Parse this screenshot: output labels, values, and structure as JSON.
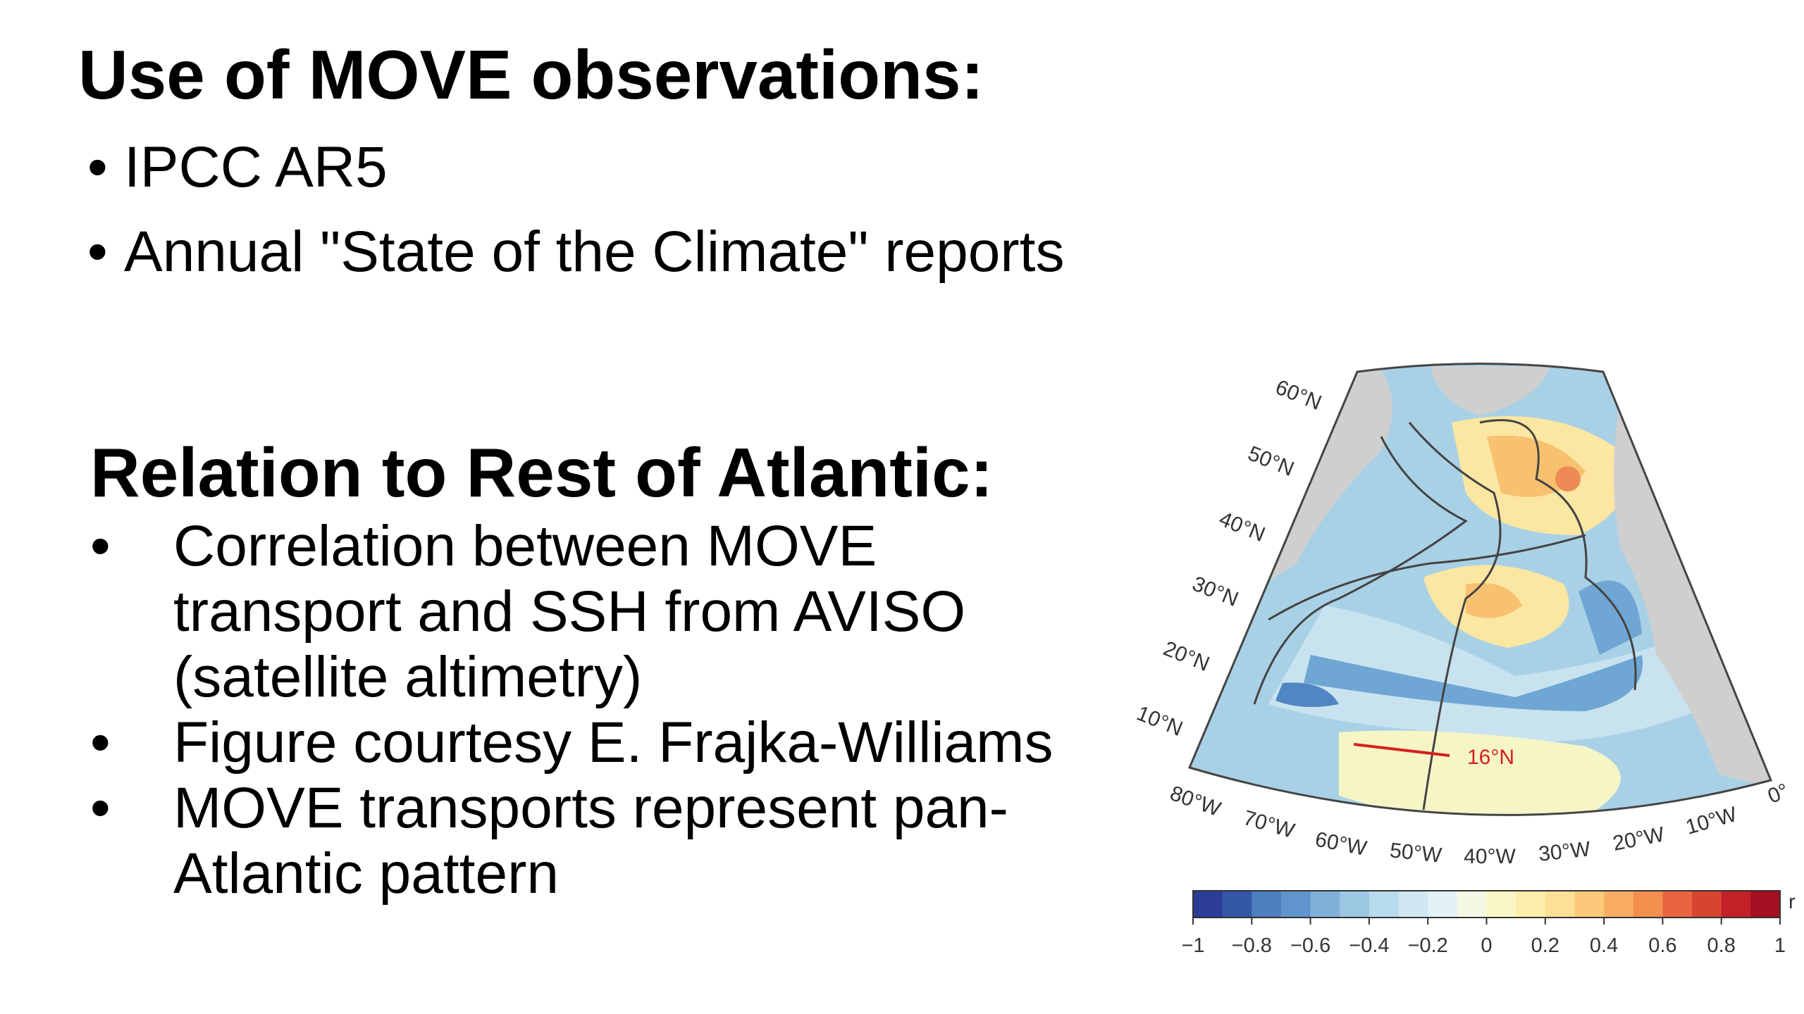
{
  "sections": [
    {
      "heading": "Use of MOVE observations:",
      "bullets": [
        "IPCC AR5",
        "Annual \"State of the Climate\" reports"
      ]
    },
    {
      "heading": "Relation to Rest of Atlantic:",
      "bullets": [
        [
          "Correlation between MOVE",
          "transport and SSH from AVISO",
          "(satellite altimetry)"
        ],
        [
          "Figure courtesy E. Frajka-Williams"
        ],
        [
          "MOVE transports represent pan-",
          "Atlantic pattern"
        ]
      ]
    }
  ],
  "figure": {
    "lat_labels": [
      "60°N",
      "50°N",
      "40°N",
      "30°N",
      "20°N",
      "10°N"
    ],
    "lon_labels": [
      "80°W",
      "70°W",
      "60°W",
      "50°W",
      "40°W",
      "30°W",
      "20°W",
      "10°W",
      "0°"
    ],
    "annotation": "16°N",
    "colorbar_label": "r",
    "colorbar_ticks": [
      "−1",
      "−0.8",
      "−0.6",
      "−0.4",
      "−0.2",
      "0",
      "0.2",
      "0.4",
      "0.6",
      "0.8",
      "1"
    ]
  }
}
